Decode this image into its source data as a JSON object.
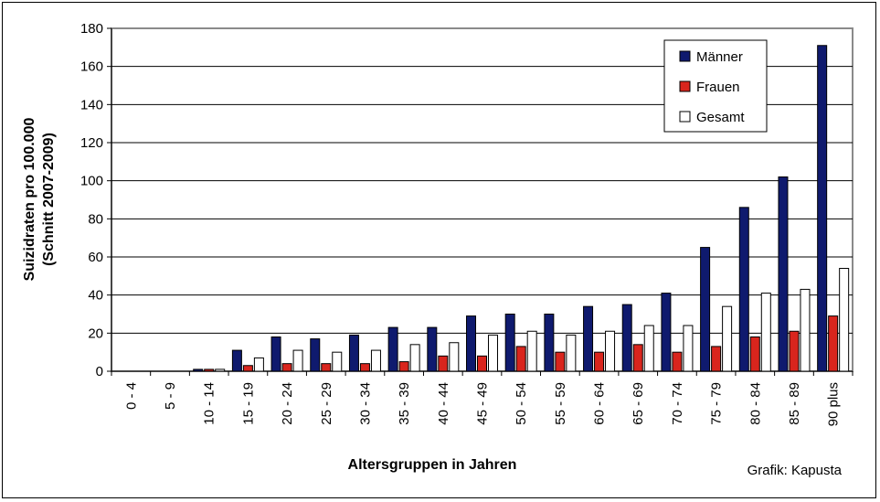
{
  "chart_data": {
    "type": "bar",
    "title": "",
    "xlabel": "Altersgruppen in Jahren",
    "ylabel_lines": [
      "Suizidraten pro 100.000",
      "(Schnitt 2007-2009)"
    ],
    "ylim": [
      0,
      180
    ],
    "yticks": [
      0,
      20,
      40,
      60,
      80,
      100,
      120,
      140,
      160,
      180
    ],
    "grid": true,
    "legend_position": "top-right",
    "categories": [
      "0 - 4",
      "5 - 9",
      "10 - 14",
      "15 - 19",
      "20 - 24",
      "25 - 29",
      "30 - 34",
      "35 - 39",
      "40 - 44",
      "45 - 49",
      "50 - 54",
      "55 - 59",
      "60 - 64",
      "65 - 69",
      "70 - 74",
      "75 - 79",
      "80 - 84",
      "85 - 89",
      "90 plus"
    ],
    "series": [
      {
        "name": "Männer",
        "color": "#0f1a6e",
        "values": [
          0,
          0,
          1,
          11,
          18,
          17,
          19,
          23,
          23,
          29,
          30,
          30,
          34,
          35,
          41,
          65,
          86,
          102,
          171
        ]
      },
      {
        "name": "Frauen",
        "color": "#d9251d",
        "values": [
          0,
          0,
          1,
          3,
          4,
          4,
          4,
          5,
          8,
          8,
          13,
          10,
          10,
          14,
          10,
          13,
          18,
          21,
          29
        ]
      },
      {
        "name": "Gesamt",
        "color": "#ffffff",
        "values": [
          0,
          0,
          1,
          7,
          11,
          10,
          11,
          14,
          15,
          19,
          21,
          19,
          21,
          24,
          24,
          34,
          41,
          43,
          54
        ]
      }
    ]
  },
  "credit": "Grafik: Kapusta"
}
